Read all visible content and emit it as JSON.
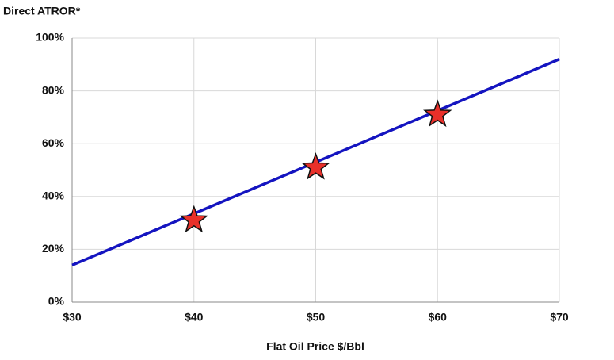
{
  "chart_data": {
    "type": "line",
    "y_label": "Direct ATROR*",
    "x_label": "Flat Oil Price $/Bbl",
    "xlim": [
      30,
      70
    ],
    "xticks": [
      {
        "value": 30,
        "label": "$30"
      },
      {
        "value": 40,
        "label": "$40"
      },
      {
        "value": 50,
        "label": "$50"
      },
      {
        "value": 60,
        "label": "$60"
      },
      {
        "value": 70,
        "label": "$70"
      }
    ],
    "ylim": [
      0,
      100
    ],
    "yticks": [
      {
        "value": 0,
        "label": "0%"
      },
      {
        "value": 20,
        "label": "20%"
      },
      {
        "value": 40,
        "label": "40%"
      },
      {
        "value": 60,
        "label": "60%"
      },
      {
        "value": 80,
        "label": "80%"
      },
      {
        "value": 100,
        "label": "100%"
      }
    ],
    "grid": true,
    "series": [
      {
        "color": "#1414c0",
        "marker": "none",
        "x": [
          30,
          70
        ],
        "values": [
          14,
          92
        ]
      },
      {
        "color": "#e8302a",
        "marker": "star",
        "x": [
          40,
          50,
          60
        ],
        "values": [
          31,
          51,
          71
        ]
      }
    ]
  }
}
